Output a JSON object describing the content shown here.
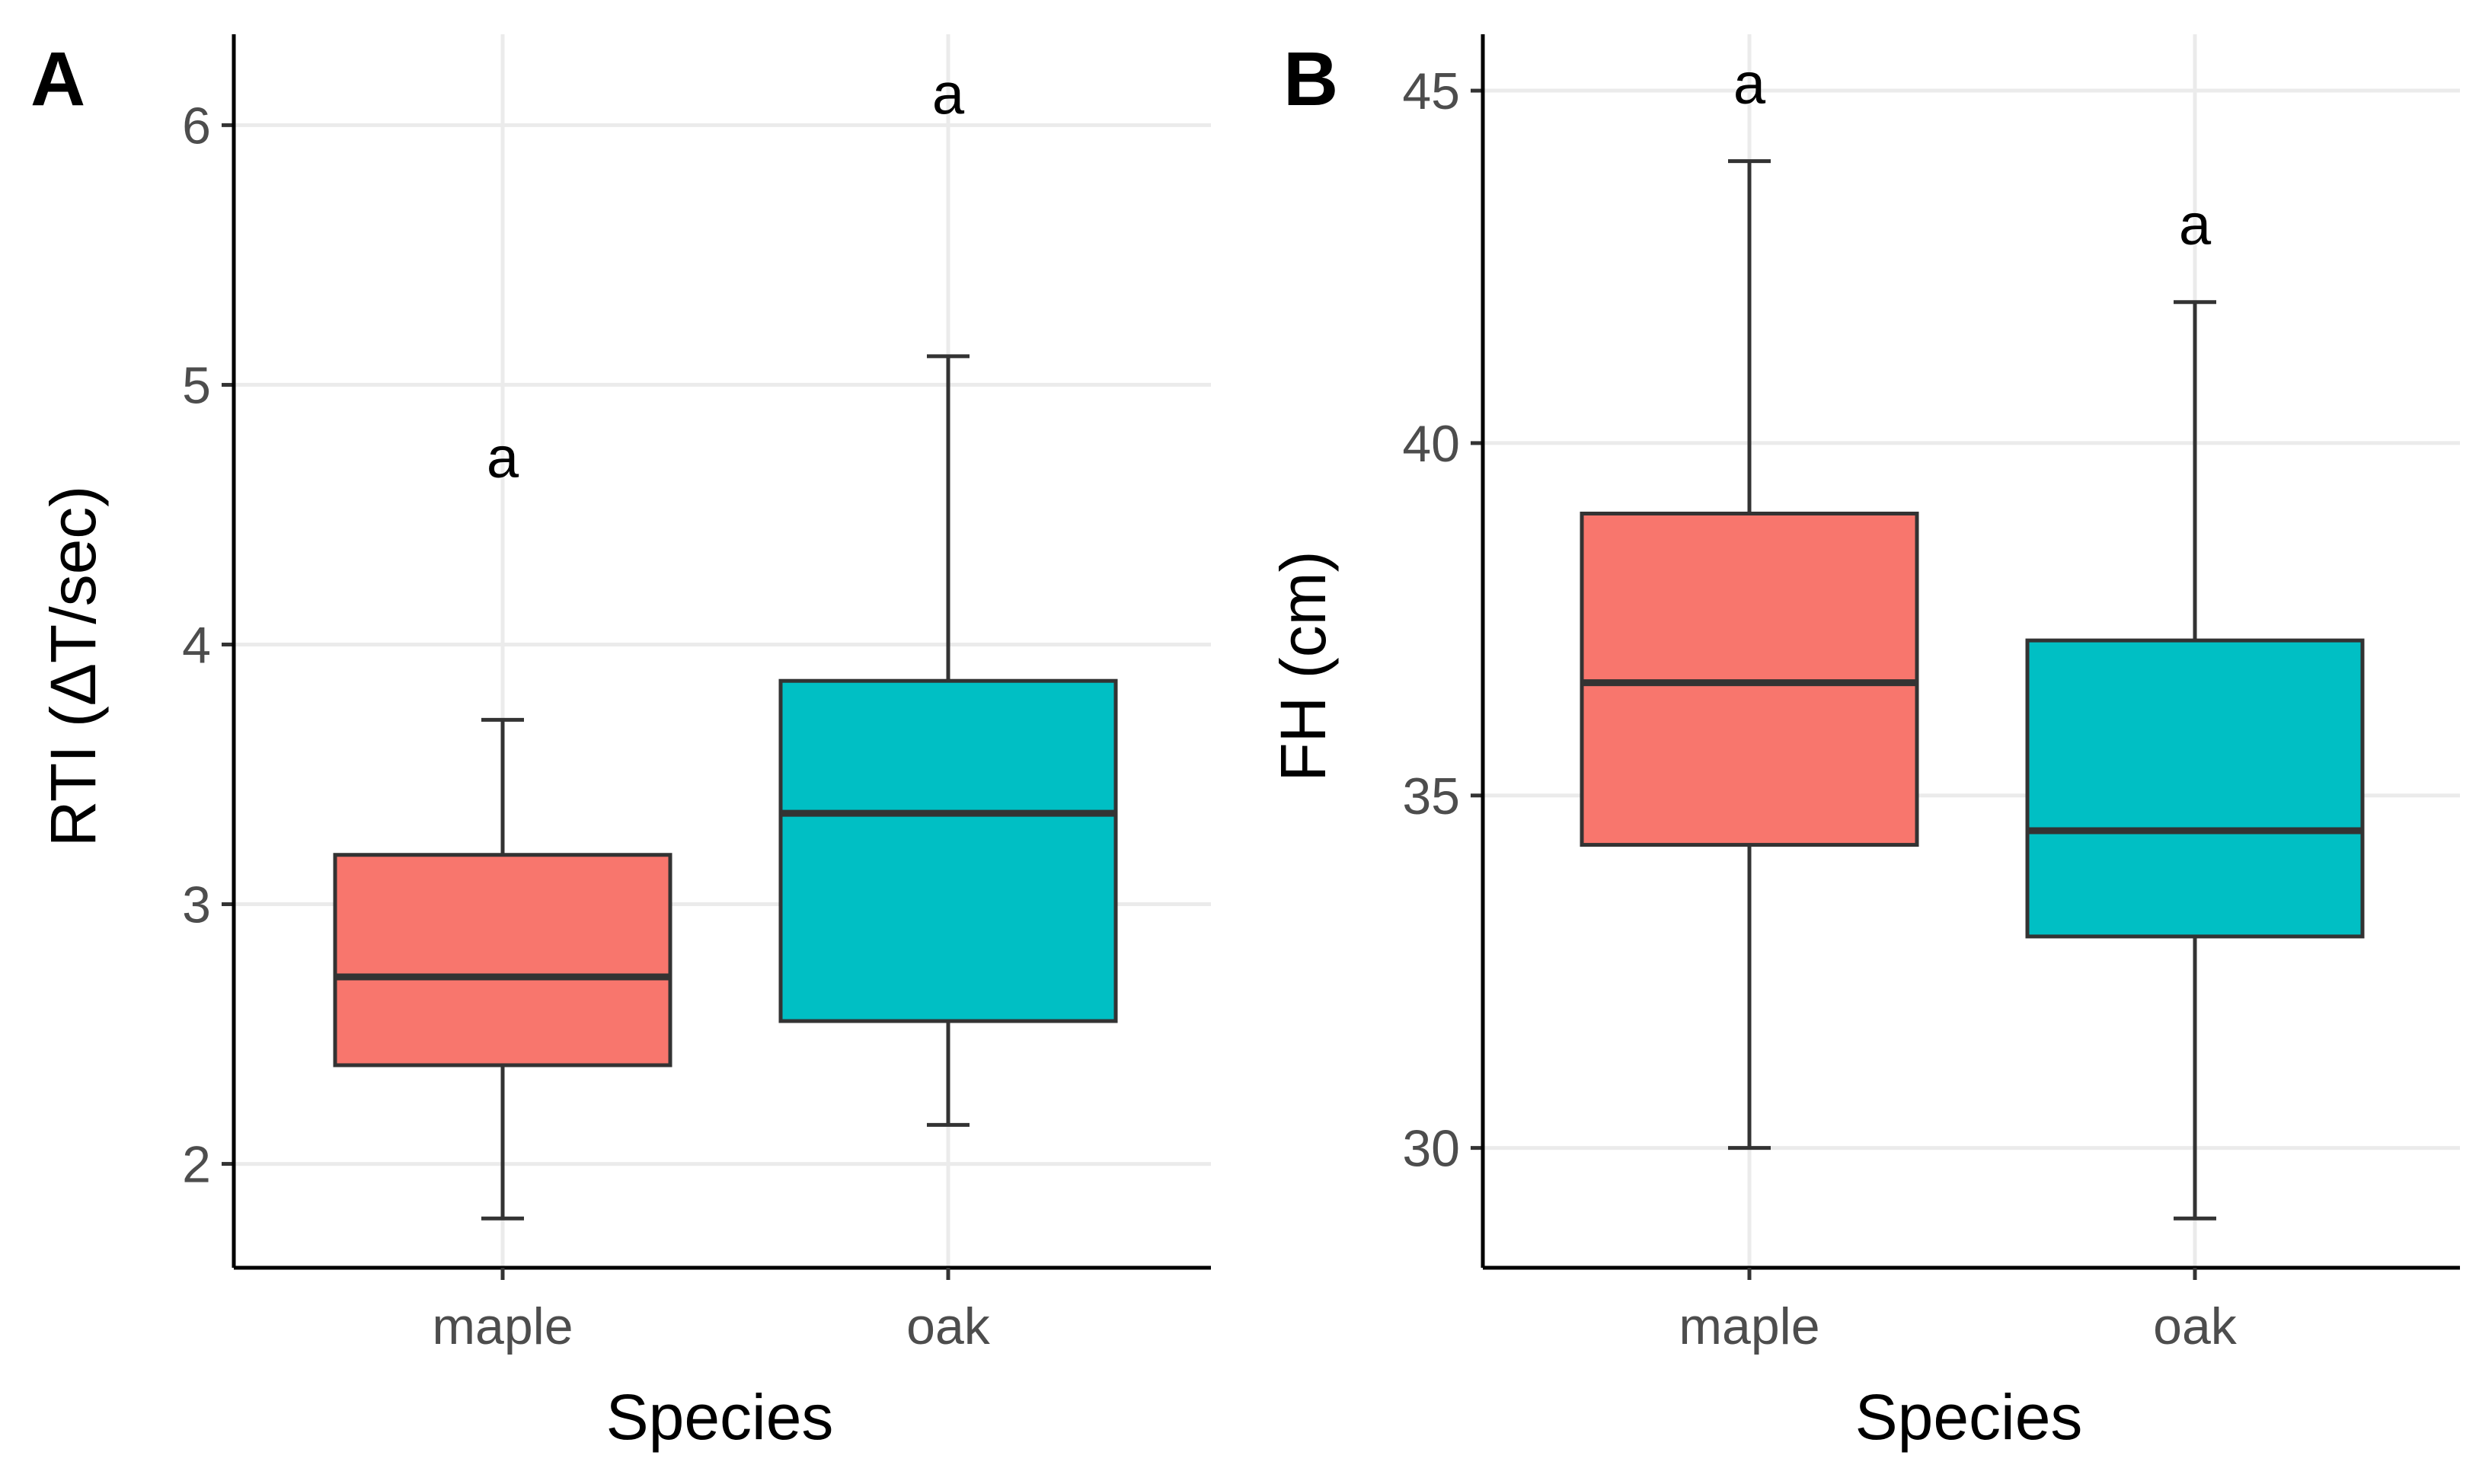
{
  "chart_data": [
    {
      "type": "boxplot",
      "panel_label": "A",
      "title": "",
      "xlabel": "Species",
      "ylabel": "RTI (ΔT/sec)",
      "categories": [
        "maple",
        "oak"
      ],
      "ylim": [
        1.6,
        6.35
      ],
      "yticks": [
        2,
        3,
        4,
        5,
        6
      ],
      "grid": true,
      "legend": "none",
      "boxes": [
        {
          "category": "maple",
          "min": 1.79,
          "q1": 2.38,
          "median": 2.72,
          "q3": 3.19,
          "max": 3.71,
          "color": "#F8766D",
          "label": "a",
          "label_y": 4.72
        },
        {
          "category": "oak",
          "min": 2.15,
          "q1": 2.55,
          "median": 3.35,
          "q3": 3.86,
          "max": 5.11,
          "color": "#00BFC4",
          "label": "a",
          "label_y": 6.12
        }
      ]
    },
    {
      "type": "boxplot",
      "panel_label": "B",
      "title": "",
      "xlabel": "Species",
      "ylabel": "FH (cm)",
      "categories": [
        "maple",
        "oak"
      ],
      "ylim": [
        28.3,
        45.8
      ],
      "yticks": [
        30,
        35,
        40,
        45
      ],
      "grid": true,
      "legend": "none",
      "boxes": [
        {
          "category": "maple",
          "min": 30.0,
          "q1": 34.3,
          "median": 36.6,
          "q3": 39.0,
          "max": 44.0,
          "color": "#F8766D",
          "label": "a",
          "label_y": 45.1
        },
        {
          "category": "oak",
          "min": 29.0,
          "q1": 33.0,
          "median": 34.5,
          "q3": 37.2,
          "max": 42.0,
          "color": "#00BFC4",
          "label": "a",
          "label_y": 43.1
        }
      ]
    }
  ]
}
